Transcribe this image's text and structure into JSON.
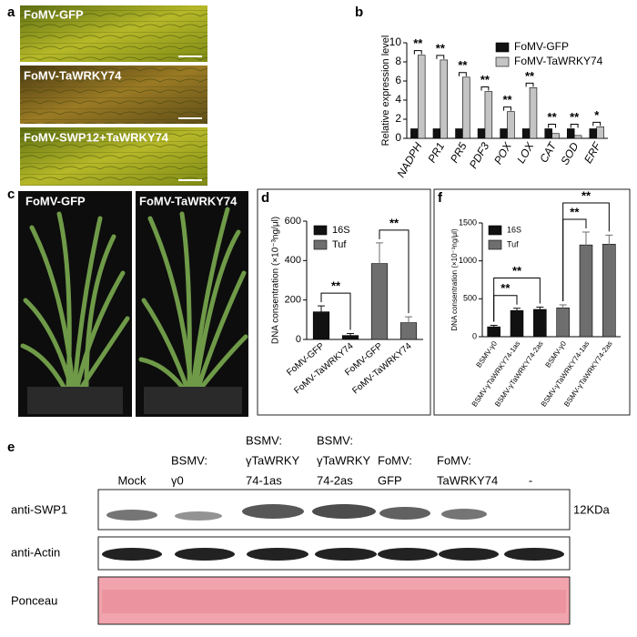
{
  "panels": {
    "a": {
      "panel": "a",
      "labels": [
        "FoMV-GFP",
        "FoMV-TaWRKY74",
        "FoMV-SWP12+TaWRKY74"
      ]
    },
    "c": {
      "panel": "c",
      "labels": [
        "FoMV-GFP",
        "FoMV-TaWRKY74"
      ]
    },
    "e": {
      "panel": "e",
      "lanes": [
        [
          "Mock"
        ],
        [
          "BSMV:",
          "γ0"
        ],
        [
          "BSMV:",
          "γTaWRKY",
          "74-1as"
        ],
        [
          "BSMV:",
          "γTaWRKY",
          "74-2as"
        ],
        [
          "FoMV:",
          "GFP"
        ],
        [
          "FoMV:",
          "TaWRKY74"
        ],
        [
          "-"
        ]
      ],
      "rows": [
        "anti-SWP1",
        "anti-Actin",
        "Ponceau"
      ],
      "size_marker": "12KDa"
    }
  },
  "chart_data": [
    {
      "type": "bar",
      "panel": "b",
      "y_label": "Relative expression level",
      "categories": [
        "NADPH",
        "PR1",
        "PR5",
        "PDF3",
        "POX",
        "LOX",
        "CAT",
        "SOD",
        "ERF"
      ],
      "series": [
        {
          "name": "FoMV-GFP",
          "color": "#111111",
          "values": [
            1,
            1,
            1,
            1,
            1,
            1,
            1,
            1,
            1
          ]
        },
        {
          "name": "FoMV-TaWRKY74",
          "color": "#c4c4c4",
          "values": [
            8.7,
            8.2,
            6.4,
            4.9,
            2.8,
            5.3,
            0.5,
            0.3,
            1.2
          ]
        }
      ],
      "significance": [
        "**",
        "**",
        "**",
        "**",
        "**",
        "**",
        "**",
        "**",
        "*"
      ],
      "ylim": [
        0,
        10
      ],
      "yticks": [
        0,
        2,
        4,
        6,
        8,
        10
      ],
      "legend": "upper right",
      "grid": false
    },
    {
      "type": "bar",
      "panel": "d",
      "y_label": "DNA consentration (×10⁻³ng/μl)",
      "categories": [
        "FoMV-GFP",
        "FoMV-TaWRKY74",
        "FoMV-GFP",
        "FoMV-TaWRKY74"
      ],
      "series": [
        {
          "name": "16S",
          "color": "#111111",
          "values": [
            140,
            20,
            null,
            null
          ],
          "errors": [
            30,
            10,
            null,
            null
          ]
        },
        {
          "name": "Tuf",
          "color": "#6e6e6e",
          "values": [
            null,
            null,
            385,
            85
          ],
          "errors": [
            null,
            null,
            105,
            30
          ]
        }
      ],
      "significance": [
        "**",
        "**"
      ],
      "ylim": [
        0,
        600
      ],
      "yticks": [
        0,
        200,
        400,
        600
      ],
      "legend": "upper left",
      "grid": false
    },
    {
      "type": "bar",
      "panel": "f",
      "y_label": "DNA consentration (×10⁻³ng/μl)",
      "categories": [
        "BSMV-γ0",
        "BSMV-γTaWRKY74-1as",
        "BSMV-γTaWRKY74-2as",
        "BSMV-γ0",
        "BSMV-γTaWRKY74-1as",
        "BSMV-γTaWRKY74-2as"
      ],
      "series": [
        {
          "name": "16S",
          "color": "#111111",
          "values": [
            130,
            345,
            360,
            null,
            null,
            null
          ],
          "errors": [
            20,
            30,
            30,
            null,
            null,
            null
          ]
        },
        {
          "name": "Tuf",
          "color": "#6e6e6e",
          "values": [
            null,
            null,
            null,
            380,
            1210,
            1220
          ],
          "errors": [
            null,
            null,
            null,
            40,
            170,
            120
          ]
        }
      ],
      "significance": [
        "**",
        "**",
        "**",
        "**"
      ],
      "ylim": [
        0,
        1500
      ],
      "yticks": [
        0,
        500,
        1000,
        1500
      ],
      "legend": "upper left",
      "grid": false
    }
  ]
}
